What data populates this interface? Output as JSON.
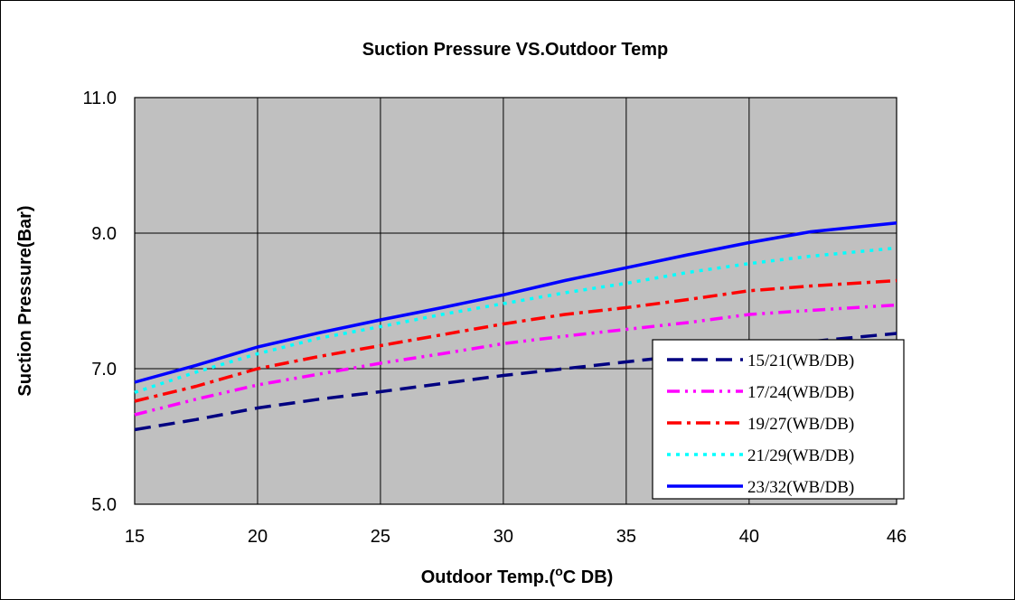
{
  "chart_data": {
    "type": "line",
    "title": "Suction Pressure VS.Outdoor Temp",
    "xlabel_prefix": "Outdoor Temp.(",
    "xlabel_sup": "o",
    "xlabel_suffix": "C DB)",
    "ylabel": "Suction Pressure(Bar)",
    "xlim": [
      15,
      46
    ],
    "ylim": [
      5.0,
      11.0
    ],
    "x_ticks": [
      15,
      20,
      25,
      30,
      35,
      40,
      46
    ],
    "y_ticks": [
      "5.0",
      "7.0",
      "9.0",
      "11.0"
    ],
    "grid": true,
    "plot_background": "#c0c0c0",
    "legend_position": "bottom-right",
    "series": [
      {
        "name": "15/21(WB/DB)",
        "color": "#000080",
        "dash": "long-dash",
        "x": [
          15,
          17.5,
          20,
          22.5,
          25,
          27.5,
          30,
          32.5,
          35,
          37.5,
          40,
          42.5,
          46
        ],
        "y": [
          6.1,
          6.25,
          6.42,
          6.55,
          6.66,
          6.78,
          6.9,
          7.0,
          7.1,
          7.2,
          7.3,
          7.4,
          7.52
        ]
      },
      {
        "name": "17/24(WB/DB)",
        "color": "#ff00ff",
        "dash": "dash-dot-dot",
        "x": [
          15,
          17.5,
          20,
          22.5,
          25,
          27.5,
          30,
          32.5,
          35,
          37.5,
          40,
          42.5,
          46
        ],
        "y": [
          6.32,
          6.55,
          6.76,
          6.92,
          7.08,
          7.22,
          7.37,
          7.48,
          7.58,
          7.68,
          7.8,
          7.86,
          7.94
        ]
      },
      {
        "name": "19/27(WB/DB)",
        "color": "#ff0000",
        "dash": "dash-dot",
        "x": [
          15,
          17.5,
          20,
          22.5,
          25,
          27.5,
          30,
          32.5,
          35,
          37.5,
          40,
          42.5,
          46
        ],
        "y": [
          6.52,
          6.74,
          7.0,
          7.18,
          7.34,
          7.5,
          7.66,
          7.8,
          7.9,
          8.02,
          8.15,
          8.22,
          8.3
        ]
      },
      {
        "name": "21/29(WB/DB)",
        "color": "#00ffff",
        "dash": "dotted",
        "x": [
          15,
          17.5,
          20,
          22.5,
          25,
          27.5,
          30,
          32.5,
          35,
          37.5,
          40,
          42.5,
          46
        ],
        "y": [
          6.65,
          6.95,
          7.22,
          7.45,
          7.62,
          7.8,
          7.96,
          8.12,
          8.26,
          8.42,
          8.55,
          8.66,
          8.78
        ]
      },
      {
        "name": "23/32(WB/DB)",
        "color": "#0000ff",
        "dash": "solid",
        "x": [
          15,
          17.5,
          20,
          22.5,
          25,
          27.5,
          30,
          32.5,
          35,
          37.5,
          40,
          42.5,
          46
        ],
        "y": [
          6.8,
          7.05,
          7.32,
          7.53,
          7.72,
          7.9,
          8.09,
          8.3,
          8.49,
          8.68,
          8.86,
          9.02,
          9.15
        ]
      }
    ]
  }
}
